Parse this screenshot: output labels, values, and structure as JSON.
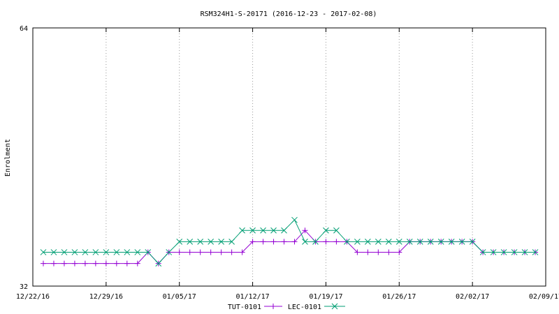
{
  "chart_data": {
    "type": "line",
    "title": "RSM324H1-S-20171 (2016-12-23 - 2017-02-08)",
    "xlabel": "",
    "ylabel": "Enrolment",
    "ylim": [
      32,
      64
    ],
    "xlim": [
      0,
      49
    ],
    "y_ticks": [
      32,
      64
    ],
    "x_ticks": [
      {
        "pos": 0,
        "label": "12/22/16"
      },
      {
        "pos": 7,
        "label": "12/29/16"
      },
      {
        "pos": 14,
        "label": "01/05/17"
      },
      {
        "pos": 21,
        "label": "01/12/17"
      },
      {
        "pos": 28,
        "label": "01/19/17"
      },
      {
        "pos": 35,
        "label": "01/26/17"
      },
      {
        "pos": 42,
        "label": "02/02/17"
      },
      {
        "pos": 49,
        "label": "02/09/17"
      }
    ],
    "grid": "vertical-dotted",
    "legend_position": "bottom",
    "x": [
      1,
      2,
      3,
      4,
      5,
      6,
      7,
      8,
      9,
      10,
      11,
      12,
      13,
      14,
      15,
      16,
      17,
      18,
      19,
      20,
      21,
      22,
      23,
      24,
      25,
      26,
      27,
      28,
      29,
      30,
      31,
      32,
      33,
      34,
      35,
      36,
      37,
      38,
      39,
      40,
      41,
      42,
      43,
      44,
      45,
      46,
      47,
      48
    ],
    "series": [
      {
        "name": "TUT-0101",
        "color": "#9400d3",
        "marker": "plus",
        "values": [
          34.8,
          34.8,
          34.8,
          34.8,
          34.8,
          34.8,
          34.8,
          34.8,
          34.8,
          34.8,
          36.2,
          34.8,
          36.2,
          36.2,
          36.2,
          36.2,
          36.2,
          36.2,
          36.2,
          36.2,
          37.5,
          37.5,
          37.5,
          37.5,
          37.5,
          38.9,
          37.5,
          37.5,
          37.5,
          37.5,
          36.2,
          36.2,
          36.2,
          36.2,
          36.2,
          37.5,
          37.5,
          37.5,
          37.5,
          37.5,
          37.5,
          37.5,
          36.2,
          36.2,
          36.2,
          36.2,
          36.2,
          36.2
        ]
      },
      {
        "name": "LEC-0101",
        "color": "#009e73",
        "marker": "cross",
        "values": [
          36.2,
          36.2,
          36.2,
          36.2,
          36.2,
          36.2,
          36.2,
          36.2,
          36.2,
          36.2,
          36.2,
          34.8,
          36.2,
          37.5,
          37.5,
          37.5,
          37.5,
          37.5,
          37.5,
          38.9,
          38.9,
          38.9,
          38.9,
          38.9,
          40.2,
          37.5,
          37.5,
          38.9,
          38.9,
          37.5,
          37.5,
          37.5,
          37.5,
          37.5,
          37.5,
          37.5,
          37.5,
          37.5,
          37.5,
          37.5,
          37.5,
          37.5,
          36.2,
          36.2,
          36.2,
          36.2,
          36.2,
          36.2
        ]
      }
    ]
  }
}
